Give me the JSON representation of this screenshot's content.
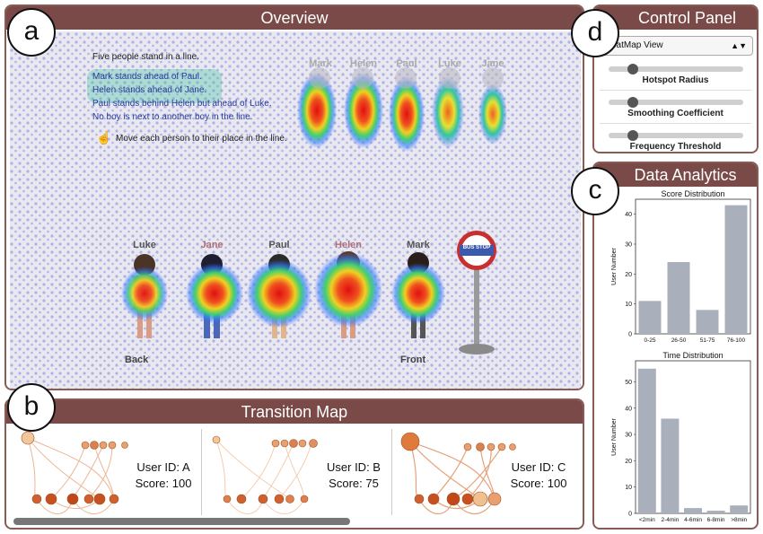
{
  "overview": {
    "title": "Overview",
    "badge": "a",
    "instructions": [
      "Five people stand in a line.",
      "Mark stands ahead of Paul.",
      "Helen stands ahead of Jane.",
      "Paul stands behind Helen but ahead of Luke.",
      "No boy is next to another boy in the line.",
      "Move each person to their place in the line."
    ],
    "top_names": [
      "Mark",
      "Helen",
      "Paul",
      "Luke",
      "Jane"
    ],
    "line_names": [
      "Luke",
      "Jane",
      "Paul",
      "Helen",
      "Mark"
    ],
    "back_label": "Back",
    "front_label": "Front",
    "bus_stop_label": "BUS STOP"
  },
  "transition": {
    "title": "Transition Map",
    "badge": "b",
    "users": [
      {
        "id_text": "User ID: A",
        "score_text": "Score: 100"
      },
      {
        "id_text": "User ID: B",
        "score_text": "Score: 75"
      },
      {
        "id_text": "User ID: C",
        "score_text": "Score: 100"
      }
    ]
  },
  "control": {
    "title": "Control Panel",
    "badge": "d",
    "view_select": "eatMap View",
    "sliders": [
      {
        "label": "Hotspot Radius",
        "value": 0.18
      },
      {
        "label": "Smoothing Coefficient",
        "value": 0.18
      },
      {
        "label": "Frequency Threshold",
        "value": 0.18
      }
    ]
  },
  "analytics": {
    "title": "Data Analytics",
    "badge": "c"
  },
  "chart_data": [
    {
      "type": "bar",
      "title": "Score Distribution",
      "ylabel": "User Number",
      "xlabel": "",
      "categories": [
        "0-25",
        "26-50",
        "51-75",
        "76-100"
      ],
      "values": [
        11,
        24,
        8,
        43
      ],
      "ylim": [
        0,
        45
      ],
      "yticks": [
        0,
        10,
        20,
        30,
        40
      ],
      "color": "#a9b0bb"
    },
    {
      "type": "bar",
      "title": "Time Distribution",
      "ylabel": "User Number",
      "xlabel": "",
      "categories": [
        "<2min",
        "2-4min",
        "4-6min",
        "6-8min",
        ">8min"
      ],
      "values": [
        55,
        36,
        2,
        1,
        3
      ],
      "ylim": [
        0,
        58
      ],
      "yticks": [
        0,
        10,
        20,
        30,
        40,
        50
      ],
      "color": "#a9b0bb"
    }
  ]
}
